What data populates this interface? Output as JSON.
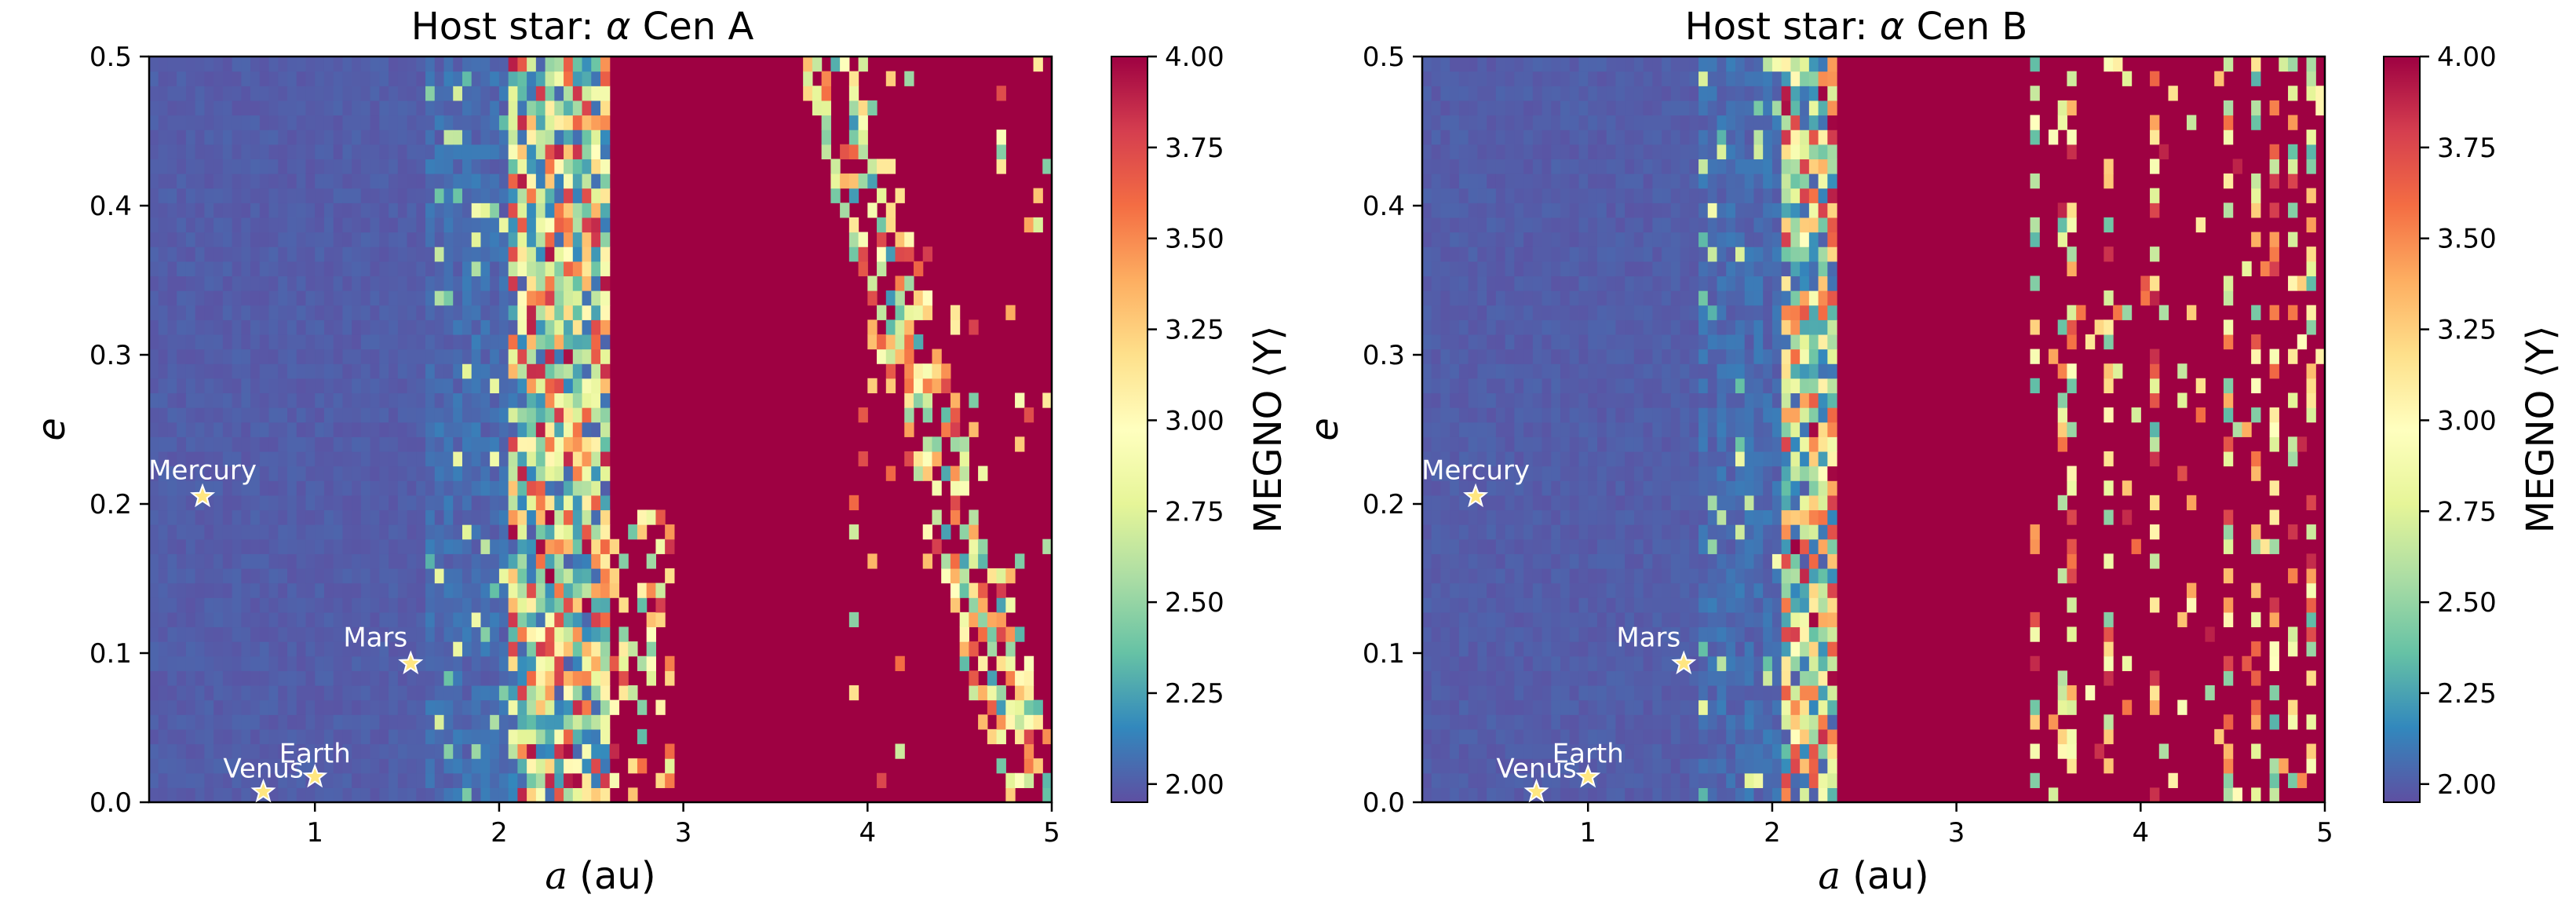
{
  "chart_data": [
    {
      "type": "heatmap",
      "title_prefix": "Host star: ",
      "title_symbol": "α",
      "title_suffix": " Cen A",
      "xlabel_symbol": "a",
      "xlabel_unit": " (au)",
      "ylabel": "e",
      "xlim": [
        0.1,
        5
      ],
      "ylim": [
        0,
        0.5
      ],
      "xticks": [
        1,
        2,
        3,
        4,
        5
      ],
      "yticks": [
        0.0,
        0.1,
        0.2,
        0.3,
        0.4,
        0.5
      ],
      "xtick_labels": [
        "1",
        "2",
        "3",
        "4",
        "5"
      ],
      "ytick_labels": [
        "0.0",
        "0.1",
        "0.2",
        "0.3",
        "0.4",
        "0.5"
      ],
      "stable_boundary_a": 2.6,
      "scattered_islands": "diagonal band of moderate MEGNO cells from a≈3.8 at e=0.5 down to a≈4.9 at e=0",
      "colorbar": {
        "label": "MEGNO ⟨Y⟩",
        "range": [
          1.95,
          4.0
        ],
        "ticks": [
          2.0,
          2.25,
          2.5,
          2.75,
          3.0,
          3.25,
          3.5,
          3.75,
          4.0
        ],
        "tick_labels": [
          "2.00",
          "2.25",
          "2.50",
          "2.75",
          "3.00",
          "3.25",
          "3.50",
          "3.75",
          "4.00"
        ]
      },
      "planets": [
        {
          "name": "Mercury",
          "a": 0.39,
          "e": 0.205
        },
        {
          "name": "Venus",
          "a": 0.72,
          "e": 0.007
        },
        {
          "name": "Earth",
          "a": 1.0,
          "e": 0.017
        },
        {
          "name": "Mars",
          "a": 1.52,
          "e": 0.093
        }
      ]
    },
    {
      "type": "heatmap",
      "title_prefix": "Host star: ",
      "title_symbol": "α",
      "title_suffix": " Cen B",
      "xlabel_symbol": "a",
      "xlabel_unit": " (au)",
      "ylabel": "e",
      "xlim": [
        0.1,
        5
      ],
      "ylim": [
        0,
        0.5
      ],
      "xticks": [
        1,
        2,
        3,
        4,
        5
      ],
      "yticks": [
        0.0,
        0.1,
        0.2,
        0.3,
        0.4,
        0.5
      ],
      "xtick_labels": [
        "1",
        "2",
        "3",
        "4",
        "5"
      ],
      "ytick_labels": [
        "0.0",
        "0.1",
        "0.2",
        "0.3",
        "0.4",
        "0.5"
      ],
      "stable_boundary_a": 2.35,
      "scattered_islands": "vertical streaks of moderate MEGNO cells at a≈3.5–5",
      "colorbar": {
        "label": "MEGNO ⟨Y⟩",
        "range": [
          1.95,
          4.0
        ],
        "ticks": [
          2.0,
          2.25,
          2.5,
          2.75,
          3.0,
          3.25,
          3.5,
          3.75,
          4.0
        ],
        "tick_labels": [
          "2.00",
          "2.25",
          "2.50",
          "2.75",
          "3.00",
          "3.25",
          "3.50",
          "3.75",
          "4.00"
        ]
      },
      "planets": [
        {
          "name": "Mercury",
          "a": 0.39,
          "e": 0.205
        },
        {
          "name": "Venus",
          "a": 0.72,
          "e": 0.007
        },
        {
          "name": "Earth",
          "a": 1.0,
          "e": 0.017
        },
        {
          "name": "Mars",
          "a": 1.52,
          "e": 0.093
        }
      ]
    }
  ],
  "colors": {
    "stable": "#5e4fa2",
    "chaotic": "#9e0142",
    "star_fill": "#ffe680",
    "star_edge": "#ffffff"
  }
}
